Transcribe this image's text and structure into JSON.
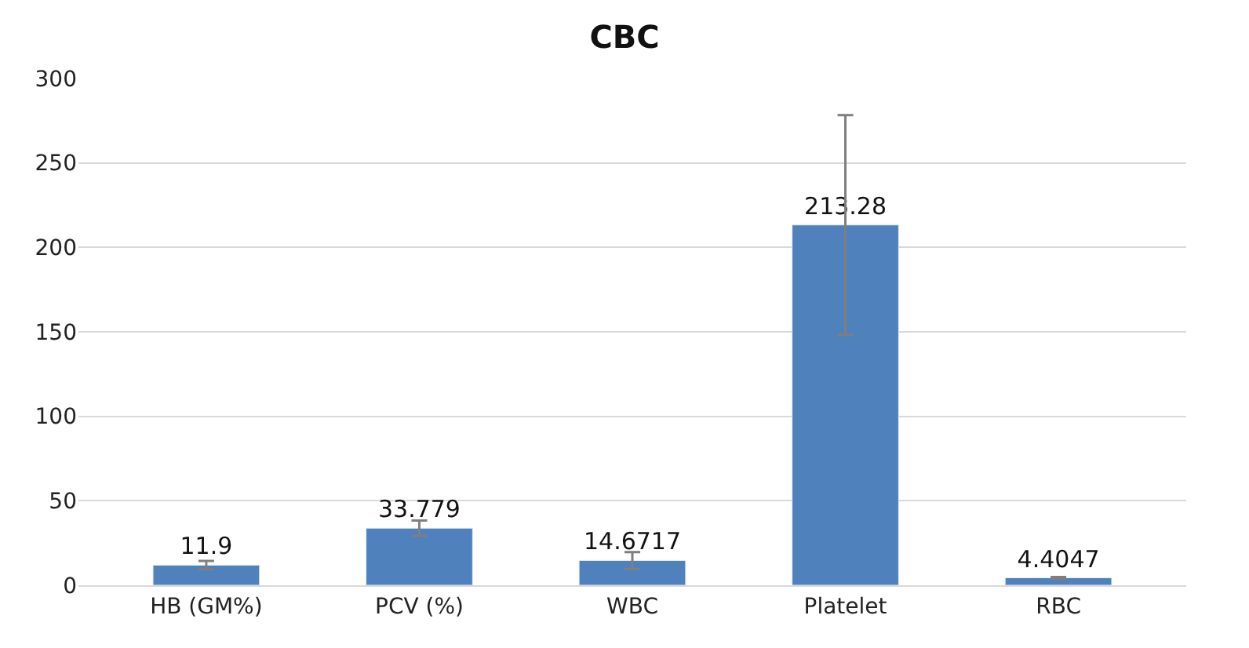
{
  "chart_data": {
    "type": "bar",
    "title": "CBC",
    "categories": [
      "HB (GM%)",
      "PCV (%)",
      "WBC",
      "Platelet",
      "RBC"
    ],
    "values": [
      11.9,
      33.779,
      14.6717,
      213.28,
      4.4047
    ],
    "errors": [
      2.5,
      4.5,
      5,
      65,
      0.5
    ],
    "color": "#4f81bd",
    "ylim": [
      0,
      300
    ],
    "yticks": [
      0,
      50,
      100,
      150,
      200,
      250,
      300
    ],
    "grid": "y",
    "data_labels": true
  }
}
